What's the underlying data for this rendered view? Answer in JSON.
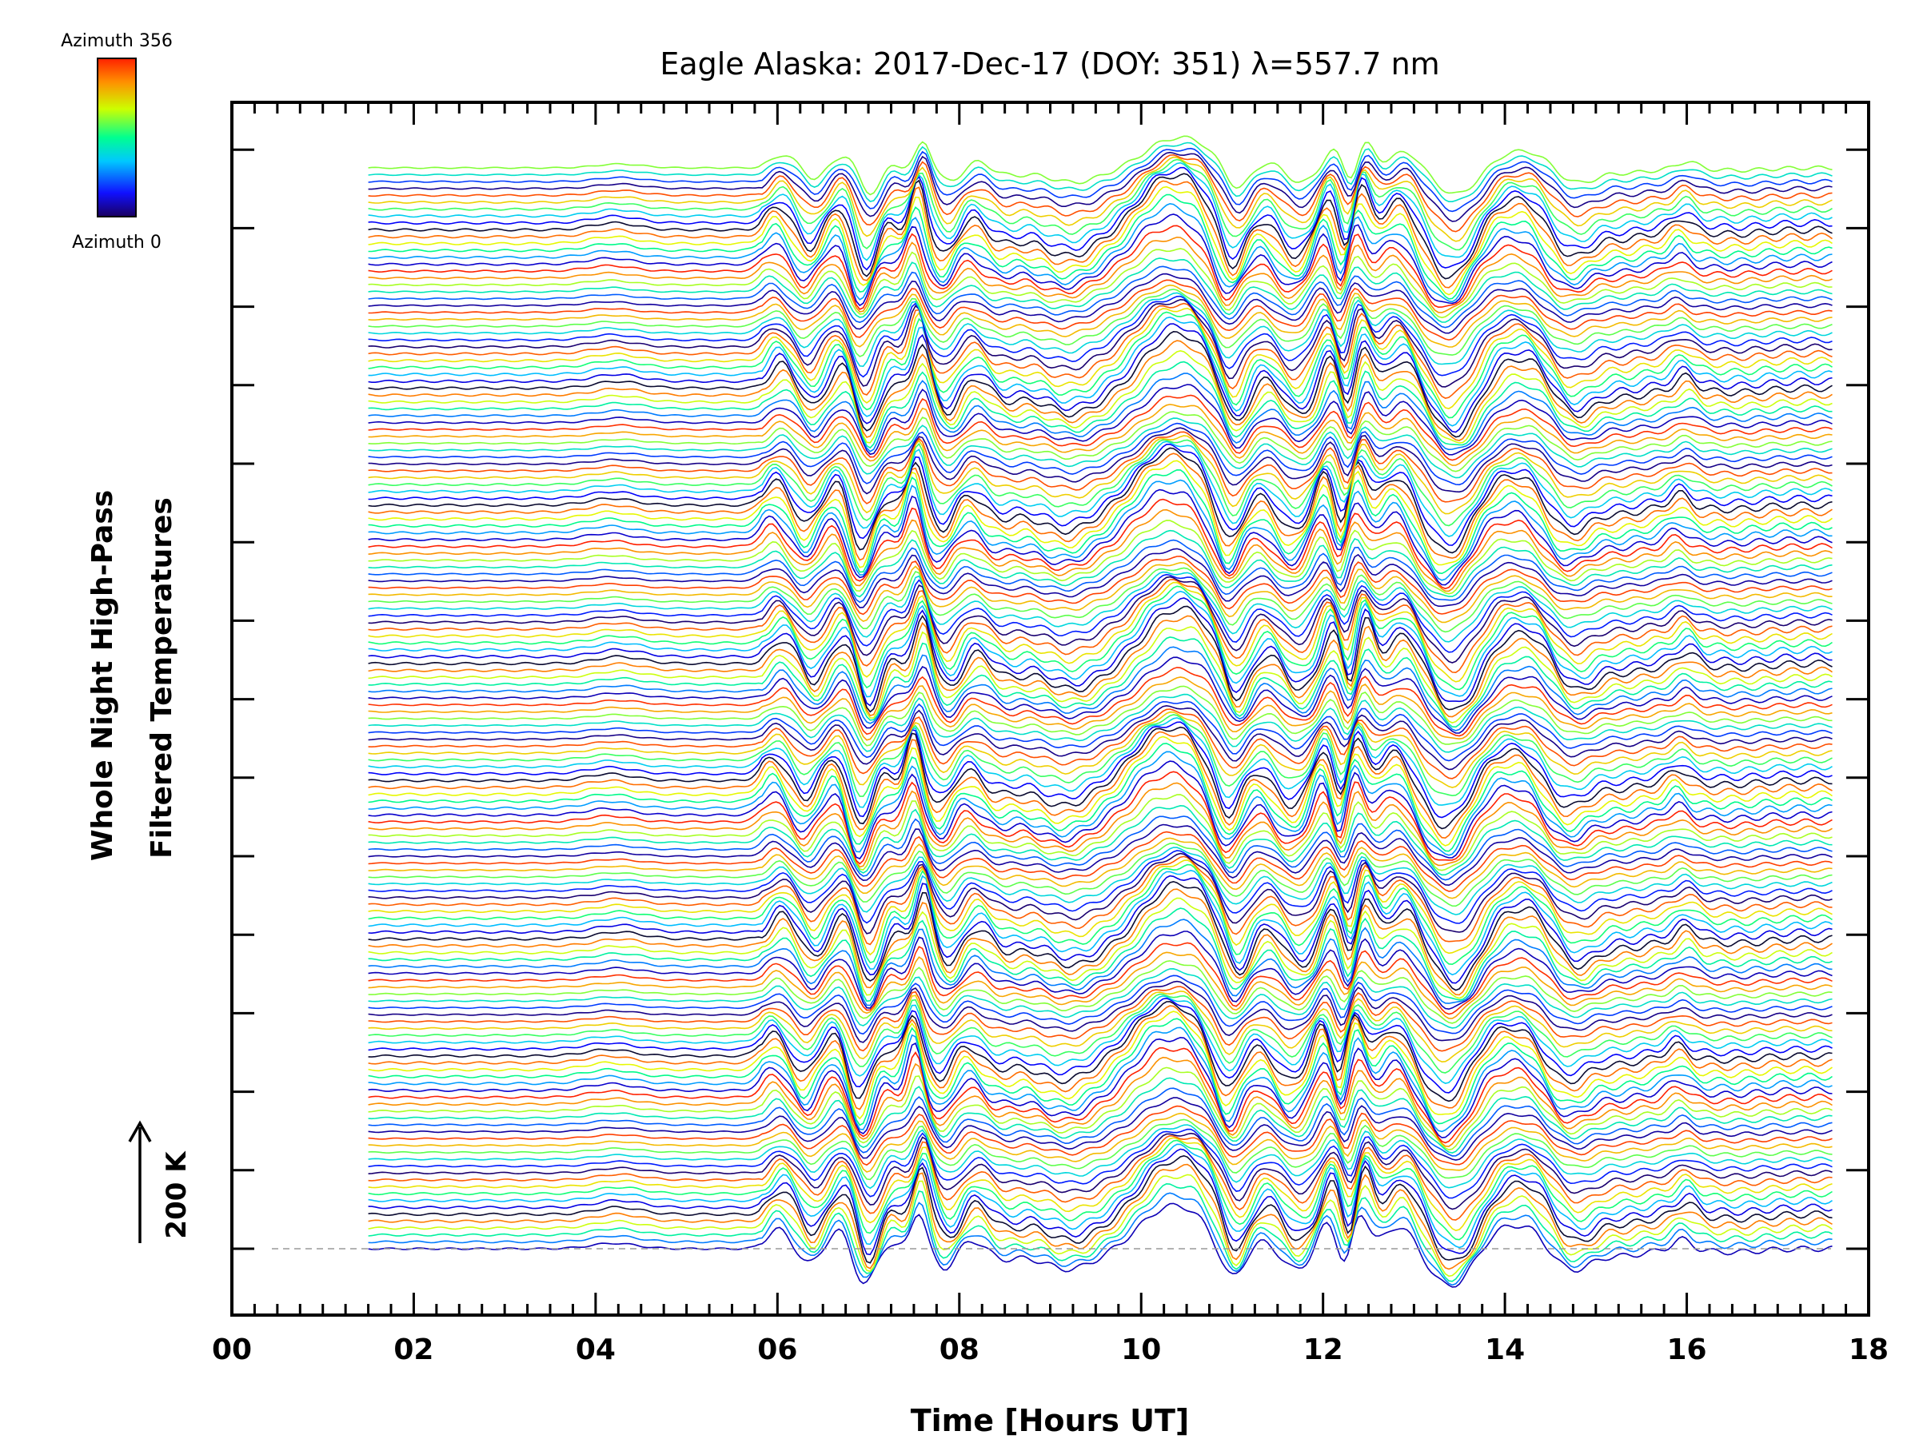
{
  "chart_data": {
    "type": "line",
    "title": "Eagle Alaska: 2017-Dec-17 (DOY: 351) λ=557.7 nm",
    "xlabel": "Time [Hours UT]",
    "ylabel_line1": "Whole Night High-Pass",
    "ylabel_line2": "Filtered Temperatures",
    "xlim": [
      0,
      18
    ],
    "x_ticks": [
      "00",
      "02",
      "04",
      "06",
      "08",
      "10",
      "12",
      "14",
      "16",
      "18"
    ],
    "x_tick_values": [
      0,
      2,
      4,
      6,
      8,
      10,
      12,
      14,
      16,
      18
    ],
    "x_range_of_data": [
      1.5,
      17.6
    ],
    "scale_bar_label": "200 K",
    "colorbar": {
      "top_label": "Azimuth 356",
      "bottom_label": "Azimuth 0",
      "azimuth_range": [
        0,
        356
      ],
      "colors": [
        "#1a0070",
        "#0000ff",
        "#00c8ff",
        "#00ff80",
        "#e6ff00",
        "#ff8000",
        "#ff2000"
      ]
    },
    "series_description": "Stacked traces of high-pass filtered temperature versus time, one trace per azimuth, colored by azimuth (0 to 356), vertically offset",
    "num_traces": 158,
    "baseline_dashed": true
  }
}
